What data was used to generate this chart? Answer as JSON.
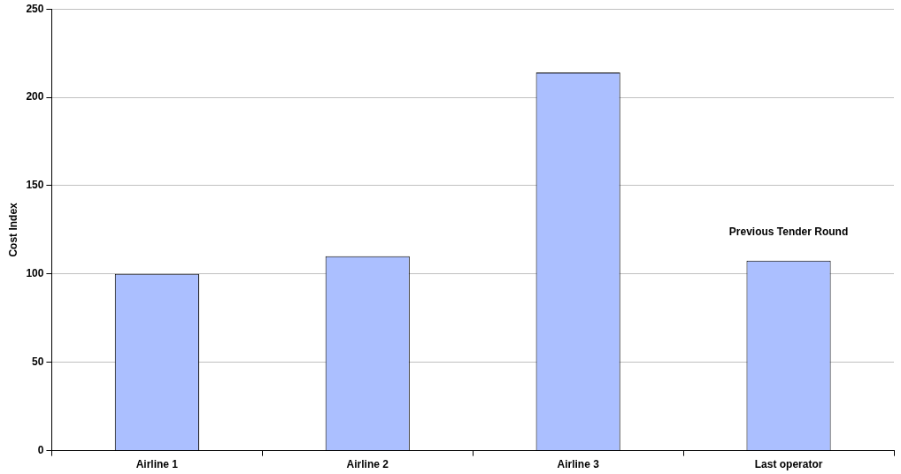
{
  "chart_data": {
    "type": "bar",
    "ylabel": "Cost Index",
    "categories": [
      "Airline 1",
      "Airline 2",
      "Airline 3",
      "Last operator"
    ],
    "values": [
      100,
      110,
      214,
      107.5
    ],
    "color": "#abbfff",
    "ylim": [
      0,
      250
    ],
    "yticks": [
      0,
      50,
      100,
      150,
      200,
      250
    ],
    "grid": "y",
    "annotations": [
      "Previous Tender Round"
    ]
  }
}
